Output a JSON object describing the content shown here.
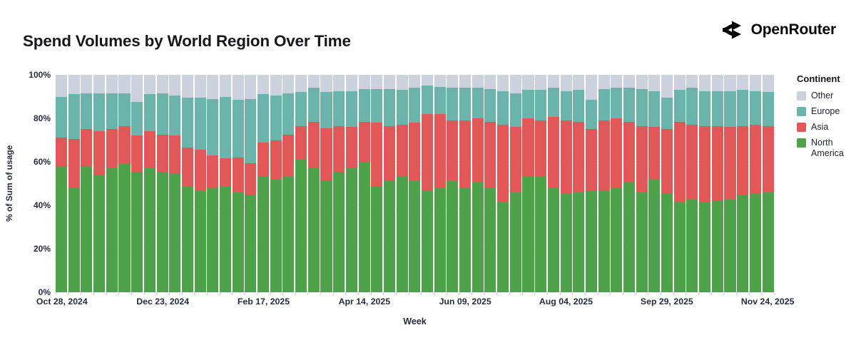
{
  "header": {
    "title": "Spend Volumes by World Region Over Time",
    "brand": "OpenRouter"
  },
  "chart_data": {
    "type": "bar",
    "stacked": true,
    "title": "Spend Volumes by World Region Over Time",
    "xlabel": "Week",
    "ylabel": "% of Sum of usage",
    "ylim": [
      0,
      100
    ],
    "y_ticks": [
      0,
      20,
      40,
      60,
      80,
      100
    ],
    "y_tick_suffix": "%",
    "x_tick_indices": [
      0,
      8,
      16,
      24,
      32,
      40,
      48,
      56
    ],
    "x_tick_labels": [
      "Oct 28, 2024",
      "Dec 23, 2024",
      "Feb 17, 2025",
      "Apr 14, 2025",
      "Jun 09, 2025",
      "Aug 04, 2025",
      "Sep 29, 2025",
      "Nov 24, 2025"
    ],
    "legend_title": "Continent",
    "legend_position": "right",
    "legend_order": [
      "Other",
      "Europe",
      "Asia",
      "North America"
    ],
    "colors": {
      "Other": "#ccd1de",
      "Europe": "#6ab4ac",
      "Asia": "#e25757",
      "North America": "#4da24a"
    },
    "categories": [
      "Oct 28, 2024",
      "Nov 04, 2024",
      "Nov 11, 2024",
      "Nov 18, 2024",
      "Nov 25, 2024",
      "Dec 02, 2024",
      "Dec 09, 2024",
      "Dec 16, 2024",
      "Dec 23, 2024",
      "Dec 30, 2024",
      "Jan 06, 2025",
      "Jan 13, 2025",
      "Jan 20, 2025",
      "Jan 27, 2025",
      "Feb 03, 2025",
      "Feb 10, 2025",
      "Feb 17, 2025",
      "Feb 24, 2025",
      "Mar 03, 2025",
      "Mar 10, 2025",
      "Mar 17, 2025",
      "Mar 24, 2025",
      "Mar 31, 2025",
      "Apr 07, 2025",
      "Apr 14, 2025",
      "Apr 21, 2025",
      "Apr 28, 2025",
      "May 05, 2025",
      "May 12, 2025",
      "May 19, 2025",
      "May 26, 2025",
      "Jun 02, 2025",
      "Jun 09, 2025",
      "Jun 16, 2025",
      "Jun 23, 2025",
      "Jun 30, 2025",
      "Jul 07, 2025",
      "Jul 14, 2025",
      "Jul 21, 2025",
      "Jul 28, 2025",
      "Aug 04, 2025",
      "Aug 11, 2025",
      "Aug 18, 2025",
      "Aug 25, 2025",
      "Sep 01, 2025",
      "Sep 08, 2025",
      "Sep 15, 2025",
      "Sep 22, 2025",
      "Sep 29, 2025",
      "Oct 06, 2025",
      "Oct 13, 2025",
      "Oct 20, 2025",
      "Oct 27, 2025",
      "Nov 03, 2025",
      "Nov 10, 2025",
      "Nov 17, 2025",
      "Nov 24, 2025"
    ],
    "series": [
      {
        "name": "North America",
        "values": [
          58,
          48,
          58,
          54,
          57,
          59,
          55,
          57,
          55,
          54.5,
          48.5,
          47,
          48,
          48.5,
          46,
          44.5,
          53,
          52,
          53,
          61,
          57,
          51.5,
          55,
          57,
          60,
          49,
          51.5,
          53,
          51,
          47,
          48,
          51,
          48,
          50.5,
          48,
          41.5,
          46,
          53.5,
          53,
          48,
          45.5,
          46,
          47,
          46.5,
          48,
          50.5,
          46,
          52,
          45.5,
          41.5,
          42.5,
          41.5,
          42,
          42.5,
          44.5,
          45.5,
          46
        ]
      },
      {
        "name": "Asia",
        "values": [
          13,
          22.5,
          17,
          20,
          18,
          17.5,
          17,
          17,
          17.5,
          17.5,
          18,
          18.5,
          15,
          13,
          16,
          15,
          16,
          18,
          19.5,
          15.5,
          21.5,
          24,
          21.5,
          19,
          18.5,
          29,
          25,
          24,
          27,
          35,
          34,
          28,
          31,
          29.5,
          30.5,
          35.5,
          30,
          26.5,
          26,
          32.5,
          33.5,
          32.5,
          28,
          32.5,
          32,
          28,
          30.5,
          24,
          29.5,
          37,
          34.5,
          35,
          34.5,
          33.5,
          32,
          31.5,
          30.5
        ]
      },
      {
        "name": "Europe",
        "values": [
          19,
          20.5,
          16.5,
          17.5,
          16.5,
          15,
          15.5,
          17,
          19,
          18.5,
          23,
          24,
          26,
          28.5,
          26.5,
          29.5,
          22,
          20.5,
          19,
          15.5,
          15.5,
          16.5,
          16,
          16.5,
          15,
          15.5,
          17,
          16,
          16,
          13,
          12.5,
          15,
          15,
          14,
          15,
          15.5,
          15.5,
          13,
          14,
          13.5,
          13.5,
          14.5,
          13.5,
          14.5,
          14,
          15.5,
          17,
          16.5,
          14.5,
          14.5,
          17,
          16,
          16,
          16.5,
          16.5,
          15.5,
          15.5
        ]
      },
      {
        "name": "Other",
        "values": [
          10,
          9,
          8.5,
          8.5,
          8.5,
          8.5,
          12.5,
          9,
          8.5,
          9.5,
          10.5,
          10.5,
          11,
          10,
          11.5,
          11,
          9,
          9.5,
          8.5,
          8,
          6,
          8,
          7.5,
          7.5,
          6.5,
          6.5,
          6.5,
          7,
          6,
          5,
          5.5,
          6,
          6,
          6,
          6.5,
          7.5,
          8.5,
          7,
          7,
          6,
          7.5,
          7,
          11.5,
          6.5,
          6,
          6,
          6.5,
          7.5,
          10.5,
          7,
          6,
          7.5,
          7.5,
          7.5,
          7,
          7.5,
          8
        ]
      }
    ]
  }
}
